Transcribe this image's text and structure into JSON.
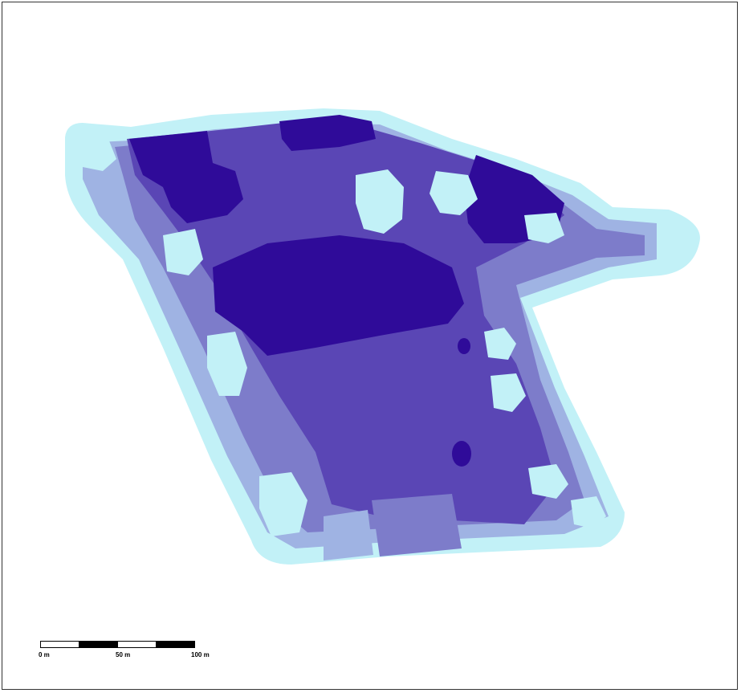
{
  "map": {
    "palette": {
      "class_1": "#c2f1f7",
      "class_2": "#9fb3e3",
      "class_3": "#7d7cca",
      "class_4": "#5a46b5",
      "class_5": "#2f0b99"
    }
  },
  "scale_bar": {
    "labels": [
      "0 m",
      "50 m",
      "100 m"
    ]
  }
}
